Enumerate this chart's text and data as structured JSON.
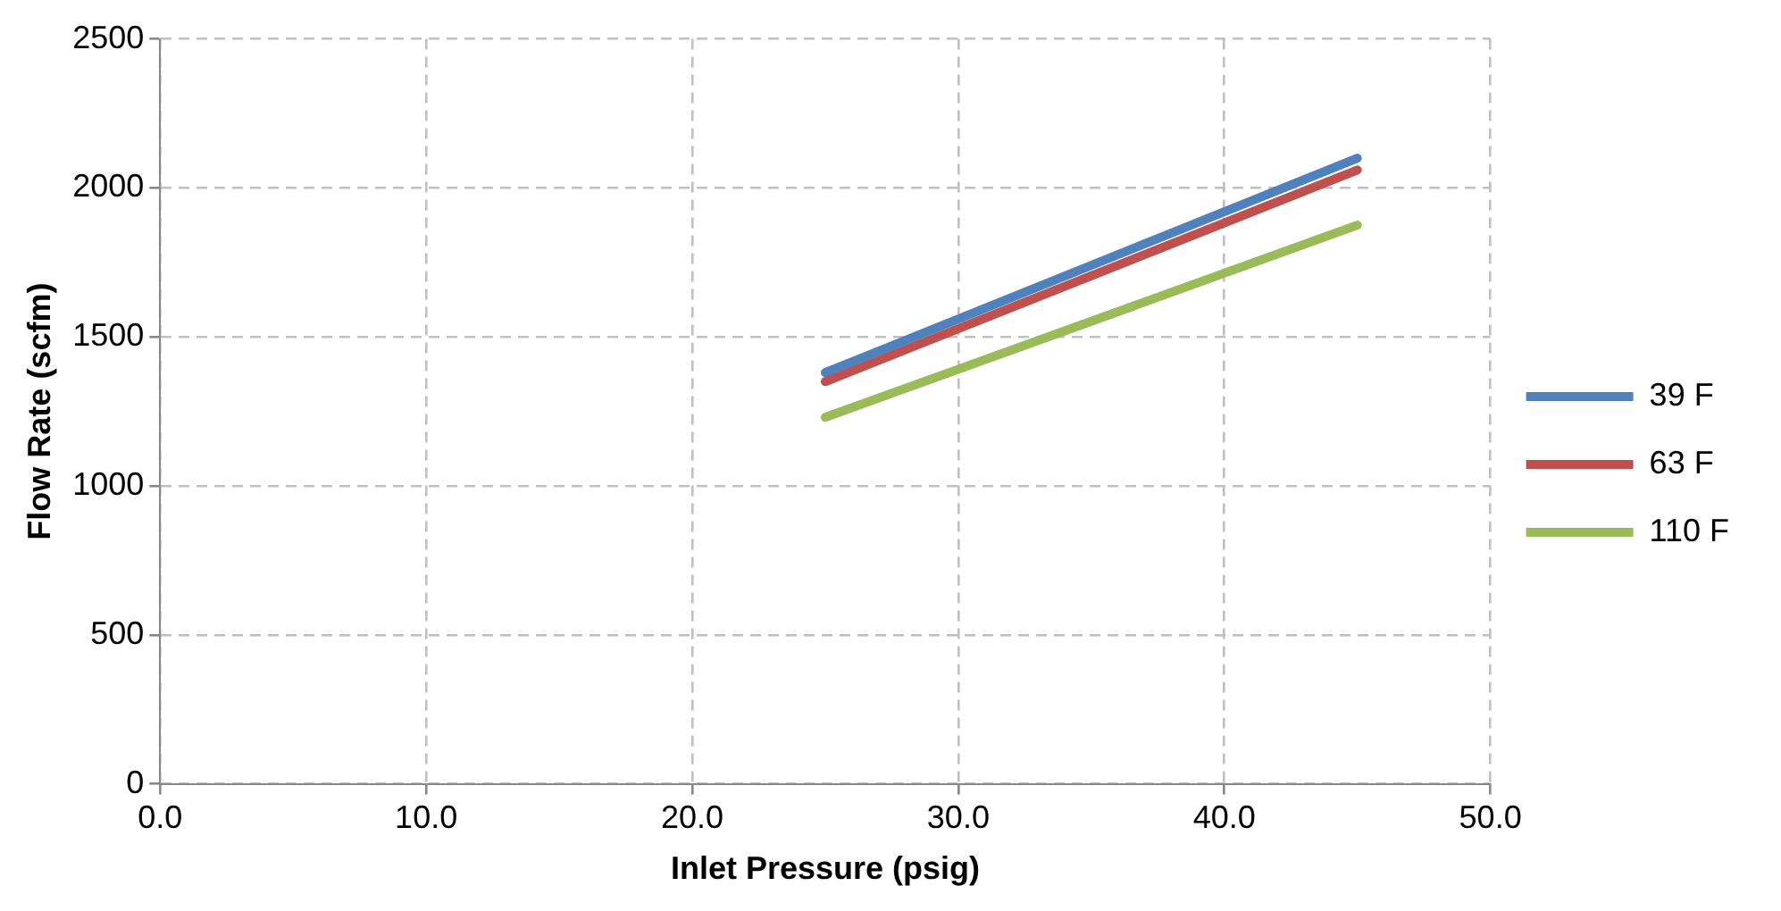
{
  "chart_data": {
    "type": "line",
    "xlabel": "Inlet Pressure (psig)",
    "ylabel": "Flow Rate (scfm)",
    "x": [
      25,
      45
    ],
    "series": [
      {
        "name": "39 F",
        "color": "#4f81bd",
        "values": [
          1380,
          2100
        ]
      },
      {
        "name": "63 F",
        "color": "#c0504d",
        "values": [
          1350,
          2060
        ]
      },
      {
        "name": "110 F",
        "color": "#9bbb59",
        "values": [
          1230,
          1875
        ]
      }
    ],
    "xlim": [
      0,
      50
    ],
    "xticks": [
      {
        "value": 0,
        "label": "0.0"
      },
      {
        "value": 10,
        "label": "10.0"
      },
      {
        "value": 20,
        "label": "20.0"
      },
      {
        "value": 30,
        "label": "30.0"
      },
      {
        "value": 40,
        "label": "40.0"
      },
      {
        "value": 50,
        "label": "50.0"
      }
    ],
    "ylim": [
      0,
      2500
    ],
    "yticks": [
      0,
      500,
      1000,
      1500,
      2000,
      2500
    ],
    "grid": true,
    "legend": "right",
    "marker": "none",
    "line_style": "solid"
  }
}
